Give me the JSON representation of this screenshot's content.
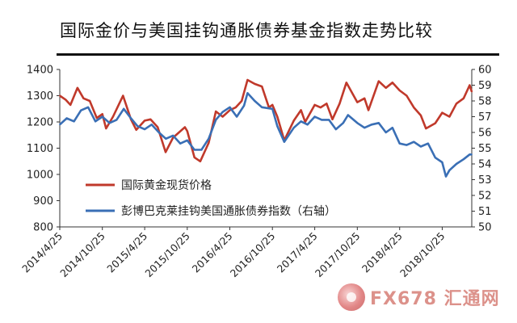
{
  "title": "国际金价与美国挂钩通胀债券基金指数走势比较",
  "watermark": {
    "text": "FX678 汇通网",
    "icon": "fx678-logo-icon"
  },
  "chart_data": {
    "type": "line",
    "x_categories": [
      "2014/4/25",
      "2014/10/25",
      "2015/4/25",
      "2015/10/25",
      "2016/4/25",
      "2016/10/25",
      "2017/4/25",
      "2017/10/25",
      "2018/4/25",
      "2018/10/25"
    ],
    "x_domain": [
      "2014/4/25",
      "2019/3/1"
    ],
    "left_axis": {
      "ylim": [
        800,
        1400
      ],
      "ticks": [
        "1400",
        "1300",
        "1200",
        "1100",
        "1000",
        "900",
        "800"
      ]
    },
    "right_axis": {
      "ylim": [
        50,
        60
      ],
      "ticks": [
        "60",
        "59",
        "58",
        "57",
        "56",
        "55",
        "54",
        "53",
        "52",
        "51",
        "50"
      ]
    },
    "series": [
      {
        "name": "国际黄金现货价格",
        "axis": "left",
        "color": "#c0392b",
        "points": [
          [
            "2014/4/25",
            1300
          ],
          [
            "2014/5/20",
            1285
          ],
          [
            "2014/6/10",
            1265
          ],
          [
            "2014/7/10",
            1330
          ],
          [
            "2014/8/5",
            1290
          ],
          [
            "2014/9/1",
            1280
          ],
          [
            "2014/10/1",
            1215
          ],
          [
            "2014/10/25",
            1230
          ],
          [
            "2014/11/10",
            1175
          ],
          [
            "2014/12/10",
            1220
          ],
          [
            "2015/1/22",
            1300
          ],
          [
            "2015/2/25",
            1210
          ],
          [
            "2015/3/20",
            1170
          ],
          [
            "2015/4/25",
            1205
          ],
          [
            "2015/5/20",
            1210
          ],
          [
            "2015/6/20",
            1180
          ],
          [
            "2015/7/24",
            1085
          ],
          [
            "2015/8/25",
            1140
          ],
          [
            "2015/10/15",
            1180
          ],
          [
            "2015/10/25",
            1165
          ],
          [
            "2015/11/25",
            1065
          ],
          [
            "2015/12/20",
            1050
          ],
          [
            "2016/1/25",
            1120
          ],
          [
            "2016/2/25",
            1240
          ],
          [
            "2016/3/25",
            1220
          ],
          [
            "2016/4/25",
            1245
          ],
          [
            "2016/5/20",
            1255
          ],
          [
            "2016/6/15",
            1280
          ],
          [
            "2016/7/10",
            1360
          ],
          [
            "2016/8/10",
            1345
          ],
          [
            "2016/9/10",
            1335
          ],
          [
            "2016/10/10",
            1255
          ],
          [
            "2016/10/25",
            1265
          ],
          [
            "2016/11/15",
            1220
          ],
          [
            "2016/12/15",
            1130
          ],
          [
            "2017/1/25",
            1205
          ],
          [
            "2017/2/25",
            1245
          ],
          [
            "2017/3/15",
            1200
          ],
          [
            "2017/4/25",
            1265
          ],
          [
            "2017/5/20",
            1255
          ],
          [
            "2017/6/15",
            1270
          ],
          [
            "2017/7/10",
            1210
          ],
          [
            "2017/8/10",
            1270
          ],
          [
            "2017/9/8",
            1350
          ],
          [
            "2017/10/25",
            1275
          ],
          [
            "2017/11/25",
            1290
          ],
          [
            "2017/12/12",
            1245
          ],
          [
            "2018/1/25",
            1355
          ],
          [
            "2018/2/25",
            1330
          ],
          [
            "2018/3/25",
            1350
          ],
          [
            "2018/4/25",
            1320
          ],
          [
            "2018/5/25",
            1300
          ],
          [
            "2018/6/25",
            1255
          ],
          [
            "2018/7/25",
            1225
          ],
          [
            "2018/8/16",
            1175
          ],
          [
            "2018/9/25",
            1195
          ],
          [
            "2018/10/25",
            1235
          ],
          [
            "2018/11/25",
            1220
          ],
          [
            "2018/12/25",
            1270
          ],
          [
            "2019/1/25",
            1290
          ],
          [
            "2019/2/20",
            1340
          ],
          [
            "2019/3/1",
            1315
          ]
        ]
      },
      {
        "name": "彭博巴克莱挂钩美国通胀债券指数（右轴）",
        "axis": "right",
        "color": "#3a6fb5",
        "points": [
          [
            "2014/4/25",
            56.5
          ],
          [
            "2014/5/25",
            56.9
          ],
          [
            "2014/6/25",
            56.7
          ],
          [
            "2014/7/25",
            57.4
          ],
          [
            "2014/8/25",
            57.6
          ],
          [
            "2014/9/25",
            56.7
          ],
          [
            "2014/10/25",
            57.0
          ],
          [
            "2014/11/25",
            56.6
          ],
          [
            "2014/12/25",
            56.8
          ],
          [
            "2015/1/25",
            57.5
          ],
          [
            "2015/2/25",
            56.9
          ],
          [
            "2015/3/25",
            56.4
          ],
          [
            "2015/4/25",
            56.2
          ],
          [
            "2015/5/25",
            56.5
          ],
          [
            "2015/6/25",
            56.0
          ],
          [
            "2015/7/25",
            55.6
          ],
          [
            "2015/8/25",
            55.8
          ],
          [
            "2015/9/25",
            55.3
          ],
          [
            "2015/10/25",
            55.5
          ],
          [
            "2015/11/25",
            54.9
          ],
          [
            "2015/12/25",
            54.9
          ],
          [
            "2016/1/25",
            55.6
          ],
          [
            "2016/2/25",
            56.8
          ],
          [
            "2016/3/25",
            57.3
          ],
          [
            "2016/4/25",
            57.6
          ],
          [
            "2016/5/25",
            57.0
          ],
          [
            "2016/6/25",
            57.7
          ],
          [
            "2016/7/10",
            58.5
          ],
          [
            "2016/8/10",
            58.0
          ],
          [
            "2016/9/10",
            57.6
          ],
          [
            "2016/10/25",
            57.5
          ],
          [
            "2016/11/15",
            56.4
          ],
          [
            "2016/12/15",
            55.4
          ],
          [
            "2017/1/25",
            56.3
          ],
          [
            "2017/2/25",
            56.7
          ],
          [
            "2017/3/25",
            56.5
          ],
          [
            "2017/4/25",
            57.0
          ],
          [
            "2017/5/25",
            56.8
          ],
          [
            "2017/6/25",
            56.8
          ],
          [
            "2017/7/25",
            56.2
          ],
          [
            "2017/8/25",
            56.6
          ],
          [
            "2017/9/15",
            57.1
          ],
          [
            "2017/10/25",
            56.6
          ],
          [
            "2017/11/25",
            56.3
          ],
          [
            "2017/12/25",
            56.5
          ],
          [
            "2018/1/25",
            56.6
          ],
          [
            "2018/2/25",
            56.0
          ],
          [
            "2018/3/25",
            56.3
          ],
          [
            "2018/4/25",
            55.3
          ],
          [
            "2018/5/25",
            55.2
          ],
          [
            "2018/6/25",
            55.4
          ],
          [
            "2018/7/25",
            55.1
          ],
          [
            "2018/8/25",
            55.3
          ],
          [
            "2018/9/25",
            54.4
          ],
          [
            "2018/10/25",
            54.1
          ],
          [
            "2018/11/10",
            53.2
          ],
          [
            "2018/11/25",
            53.6
          ],
          [
            "2018/12/25",
            54.0
          ],
          [
            "2019/1/25",
            54.3
          ],
          [
            "2019/2/20",
            54.6
          ],
          [
            "2019/3/1",
            54.6
          ]
        ]
      }
    ],
    "legend": {
      "placement": "center-left, inside plot"
    },
    "grid": false
  }
}
